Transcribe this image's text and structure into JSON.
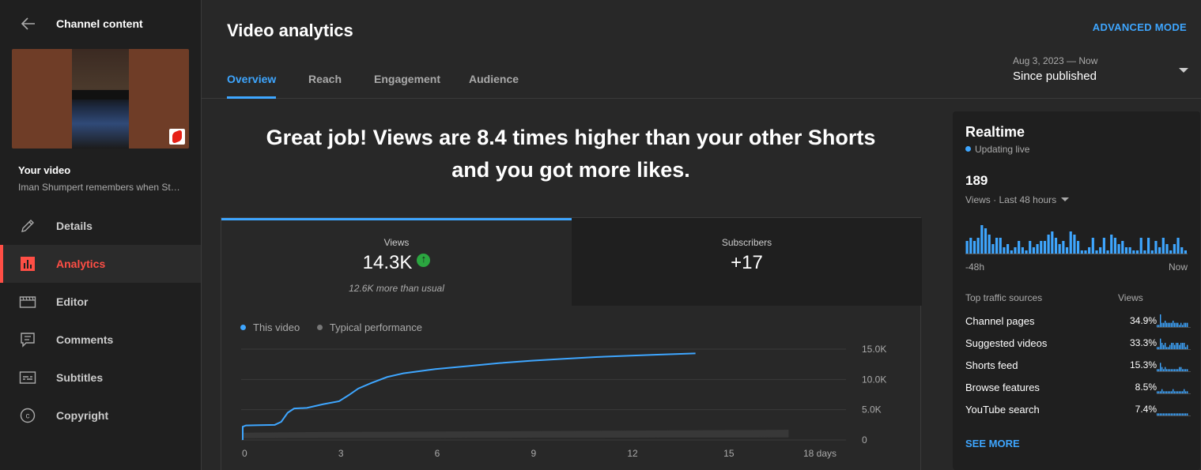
{
  "sidebar": {
    "back_title": "Channel content",
    "your_video_label": "Your video",
    "video_title": "Iman Shumpert remembers when St…",
    "items": [
      {
        "label": "Details",
        "icon": "pencil-icon"
      },
      {
        "label": "Analytics",
        "icon": "analytics-icon",
        "active": true
      },
      {
        "label": "Editor",
        "icon": "film-icon"
      },
      {
        "label": "Comments",
        "icon": "comment-icon"
      },
      {
        "label": "Subtitles",
        "icon": "subtitles-icon"
      },
      {
        "label": "Copyright",
        "icon": "copyright-icon"
      }
    ]
  },
  "header": {
    "title": "Video analytics",
    "advanced_mode": "ADVANCED MODE",
    "tabs": [
      "Overview",
      "Reach",
      "Engagement",
      "Audience"
    ],
    "active_tab": "Overview",
    "date_range_small": "Aug 3, 2023 — Now",
    "date_range_label": "Since published"
  },
  "headline": {
    "line1": "Great job! Views are 8.4 times higher than your other Shorts",
    "line2": "and you got more likes."
  },
  "metrics": {
    "views": {
      "label": "Views",
      "value": "14.3K",
      "sub": "12.6K more than usual"
    },
    "subscribers": {
      "label": "Subscribers",
      "value": "+17"
    }
  },
  "legend": {
    "this_video": "This video",
    "typical": "Typical performance"
  },
  "colors": {
    "accent": "#3ea6ff",
    "line": "#3ea6ff",
    "typical": "#3a3a3a",
    "active_nav": "#ff4e45",
    "up": "#2ba640"
  },
  "chart_data": {
    "type": "line",
    "x": [
      0,
      0.1,
      0.5,
      1,
      1.2,
      1.4,
      1.6,
      2,
      2.5,
      3,
      3.3,
      3.6,
      4,
      4.5,
      5,
      6,
      7,
      8,
      9,
      10,
      11,
      12,
      13,
      14.1
    ],
    "series": [
      {
        "name": "This video",
        "values": [
          2200,
          2400,
          2450,
          2500,
          3000,
          4500,
          5200,
          5300,
          5900,
          6400,
          7400,
          8500,
          9400,
          10400,
          11000,
          11700,
          12200,
          12700,
          13100,
          13400,
          13700,
          13900,
          14100,
          14300
        ]
      },
      {
        "name": "Typical performance",
        "x": [
          0,
          2,
          4,
          6,
          8,
          10,
          12,
          14,
          16,
          17
        ],
        "values": [
          1200,
          1300,
          1350,
          1400,
          1450,
          1500,
          1550,
          1600,
          1650,
          1700
        ]
      }
    ],
    "x_ticks": [
      "0",
      "3",
      "6",
      "9",
      "12",
      "15",
      "18 days"
    ],
    "x_tick_values": [
      0,
      3,
      6,
      9,
      12,
      15,
      18
    ],
    "y_ticks": [
      "0",
      "5.0K",
      "10.0K",
      "15.0K"
    ],
    "y_tick_values": [
      0,
      5000,
      10000,
      15000
    ],
    "xlim": [
      0,
      18
    ],
    "ylim": [
      0,
      15000
    ],
    "grid": true
  },
  "realtime": {
    "title": "Realtime",
    "live_label": "Updating live",
    "count": "189",
    "range_label": "Views · Last 48 hours",
    "bars": [
      4,
      5,
      4,
      5,
      9,
      8,
      6,
      3,
      5,
      5,
      2,
      3,
      1,
      2,
      4,
      2,
      1,
      4,
      2,
      3,
      4,
      4,
      6,
      7,
      5,
      3,
      4,
      2,
      7,
      6,
      4,
      1,
      1,
      2,
      5,
      1,
      2,
      5,
      1,
      6,
      5,
      3,
      4,
      2,
      2,
      1,
      1,
      5,
      1,
      5,
      1,
      4,
      2,
      5,
      3,
      1,
      3,
      5,
      2,
      1
    ],
    "axis_left": "-48h",
    "axis_right": "Now",
    "traffic_header_left": "Top traffic sources",
    "traffic_header_right": "Views",
    "sources": [
      {
        "name": "Channel pages",
        "pct": "34.9%",
        "spark": [
          1,
          1,
          6,
          2,
          2,
          3,
          2,
          2,
          2,
          2,
          3,
          2,
          2,
          2,
          1,
          2,
          1,
          2,
          2,
          2
        ]
      },
      {
        "name": "Suggested videos",
        "pct": "33.3%",
        "spark": [
          1,
          1,
          5,
          3,
          2,
          3,
          1,
          1,
          2,
          3,
          3,
          2,
          3,
          3,
          2,
          3,
          3,
          3,
          1,
          2
        ]
      },
      {
        "name": "Shorts feed",
        "pct": "15.3%",
        "spark": [
          1,
          1,
          4,
          2,
          1,
          2,
          1,
          1,
          1,
          1,
          1,
          1,
          1,
          1,
          2,
          2,
          1,
          1,
          1,
          1
        ]
      },
      {
        "name": "Browse features",
        "pct": "8.5%",
        "spark": [
          1,
          1,
          1,
          2,
          1,
          1,
          1,
          1,
          1,
          1,
          2,
          1,
          1,
          1,
          1,
          1,
          1,
          2,
          1,
          1
        ]
      },
      {
        "name": "YouTube search",
        "pct": "7.4%",
        "spark": [
          1,
          1,
          1,
          1,
          1,
          1,
          1,
          1,
          1,
          1,
          1,
          1,
          1,
          1,
          1,
          1,
          1,
          1,
          1,
          1
        ]
      }
    ],
    "see_more": "SEE MORE"
  }
}
